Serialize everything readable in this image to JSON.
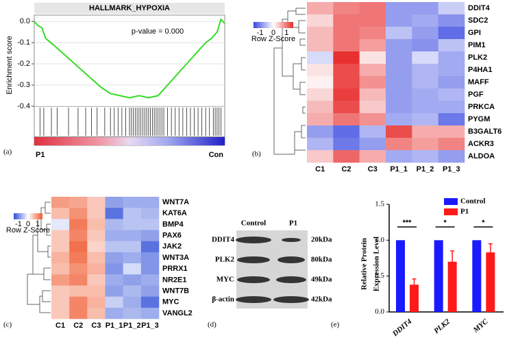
{
  "chart_data": [
    {
      "type": "line",
      "panel_label": "(a)",
      "title": "HALLMARK_HYPOXIA",
      "y_label": "Enrichment score",
      "annotation": "p-value = 0.000",
      "start_label": "P1",
      "end_label": "Con",
      "color": "#33dd22",
      "x": [
        0,
        2,
        4,
        6,
        10,
        15,
        20,
        25,
        30,
        35,
        40,
        45,
        50,
        55,
        60,
        65,
        70,
        75,
        80,
        85,
        90,
        93,
        96,
        98,
        100
      ],
      "values": [
        0,
        -0.02,
        -0.03,
        -0.08,
        -0.11,
        -0.15,
        -0.19,
        -0.23,
        -0.27,
        -0.31,
        -0.34,
        -0.35,
        -0.36,
        -0.35,
        -0.36,
        -0.35,
        -0.3,
        -0.25,
        -0.2,
        -0.15,
        -0.1,
        -0.08,
        -0.05,
        0.01,
        -0.01
      ],
      "hits": [
        3,
        5,
        9,
        12,
        18,
        23,
        27,
        30,
        33,
        37,
        40,
        42,
        44,
        46,
        48,
        50,
        51,
        52,
        53,
        54,
        55,
        56,
        57,
        58,
        59,
        60,
        61,
        62,
        63,
        64,
        65,
        66,
        67,
        68,
        70,
        72,
        74,
        76,
        78,
        80,
        82,
        84,
        86,
        88,
        90,
        92,
        94,
        95,
        96,
        97,
        98
      ],
      "xlim": [
        0,
        100
      ],
      "ylim": [
        -0.4,
        0.03
      ],
      "yticks": [
        {
          "value": 0,
          "label": "0.0"
        },
        -0.1,
        -0.2,
        -0.3,
        -0.4
      ],
      "grid": true
    },
    {
      "type": "heatmap",
      "panel_label": "(b)",
      "legend_title": "Row Z-Score",
      "colorbar_ticks": [
        -1,
        0,
        1
      ],
      "clim": [
        -1.5,
        1.5
      ],
      "colors": [
        "#3848e0",
        "#ffffff",
        "#e83030"
      ],
      "columns": [
        "C1",
        "C2",
        "C3",
        "P1_1",
        "P1_2",
        "P1_3"
      ],
      "rows": [
        "DDIT4",
        "SDC2",
        "GPI",
        "PIM1",
        "PLK2",
        "P4HA1",
        "MAFF",
        "PGF",
        "PRKCA",
        "PYGM",
        "B3GALT6",
        "ACKR3",
        "ALDOA"
      ],
      "values": [
        [
          0.6,
          0.9,
          1.0,
          -0.8,
          -0.8,
          -0.4
        ],
        [
          0.3,
          1.0,
          1.0,
          -0.8,
          -0.7,
          -0.9
        ],
        [
          0.5,
          1.0,
          0.9,
          -0.5,
          -0.8,
          -1.2
        ],
        [
          0.5,
          1.0,
          0.7,
          -0.8,
          -0.9,
          -0.5
        ],
        [
          -0.3,
          1.5,
          0.2,
          -0.8,
          -0.3,
          -0.7
        ],
        [
          0.2,
          1.3,
          0.6,
          -0.8,
          -0.6,
          -0.7
        ],
        [
          0.1,
          1.3,
          0.8,
          -0.8,
          -0.6,
          -0.8
        ],
        [
          0.3,
          1.4,
          0.5,
          -0.8,
          -0.7,
          -0.6
        ],
        [
          0.5,
          1.3,
          0.4,
          -0.8,
          -0.7,
          -0.7
        ],
        [
          0.6,
          1.0,
          0.8,
          -0.7,
          -0.6,
          -1.1
        ],
        [
          -0.8,
          -1.2,
          -0.6,
          1.3,
          0.6,
          0.6
        ],
        [
          -0.6,
          -1.1,
          -0.8,
          0.9,
          0.7,
          0.9
        ],
        [
          0.4,
          1.1,
          0.6,
          -0.7,
          -0.6,
          -0.8
        ]
      ]
    },
    {
      "type": "heatmap",
      "panel_label": "(c)",
      "legend_title": "Row Z-Score",
      "colorbar_ticks": [
        -1,
        0,
        1
      ],
      "clim": [
        -1.5,
        1.5
      ],
      "colors": [
        "#2f4fd8",
        "#ffffff",
        "#f05a30"
      ],
      "columns": [
        "C1",
        "C2",
        "C3",
        "P1_1",
        "P1_2",
        "P1_3"
      ],
      "rows": [
        "WNT7A",
        "KAT6A",
        "BMP4",
        "PAX6",
        "JAK2",
        "WNT3A",
        "PRRX1",
        "NR2E1",
        "WNT7B",
        "MYC",
        "VANGL2"
      ],
      "values": [
        [
          0.9,
          0.8,
          0.5,
          -0.8,
          -0.7,
          -0.7
        ],
        [
          0.6,
          1.0,
          0.5,
          -1.2,
          -0.5,
          -0.6
        ],
        [
          -0.2,
          1.2,
          0.6,
          -0.6,
          -0.5,
          -0.5
        ],
        [
          0.5,
          1.1,
          0.5,
          -0.7,
          -0.7,
          -0.8
        ],
        [
          0.5,
          1.3,
          0.4,
          -0.5,
          -0.5,
          -1.2
        ],
        [
          0.7,
          1.2,
          0.6,
          -0.8,
          -0.7,
          -0.9
        ],
        [
          0.6,
          1.0,
          0.7,
          -0.9,
          -0.3,
          -0.9
        ],
        [
          0.9,
          1.1,
          0.5,
          -0.7,
          -0.8,
          -0.7
        ],
        [
          0.5,
          0.6,
          0.6,
          -0.8,
          -0.6,
          -0.8
        ],
        [
          0.5,
          1.1,
          0.7,
          -0.4,
          -0.7,
          -1.2
        ],
        [
          0.5,
          1.1,
          0.6,
          -0.7,
          -0.6,
          -0.7
        ]
      ]
    },
    {
      "type": "bar",
      "panel_label": "(e)",
      "y_label": [
        "Relative Protein",
        "Expression Level"
      ],
      "categories": [
        "DDIT4",
        "PLK2",
        "MYC"
      ],
      "series": [
        {
          "name": "Control",
          "color": "#1a1aff",
          "values": [
            1,
            1,
            1
          ]
        },
        {
          "name": "P1",
          "color": "#ff1a1a",
          "values": [
            0.38,
            0.7,
            0.83
          ],
          "errors": [
            0.08,
            0.15,
            0.12
          ]
        }
      ],
      "significance": [
        "***",
        "*",
        "*"
      ],
      "ylim": [
        0,
        1.5
      ],
      "yticks": [
        {
          "value": 0,
          "label": "0.0"
        },
        0.5,
        {
          "value": 1,
          "label": "1.0"
        },
        1.5
      ],
      "legend": "upper right"
    }
  ],
  "blot": {
    "panel_label": "(d)",
    "columns": [
      "Control",
      "P1"
    ],
    "rows": [
      {
        "protein": "DDIT4",
        "size": "20kDa"
      },
      {
        "protein": "PLK2",
        "size": "80kDa"
      },
      {
        "protein": "MYC",
        "size": "49kDa"
      },
      {
        "protein": "β-actin",
        "size": "42kDa"
      }
    ]
  }
}
